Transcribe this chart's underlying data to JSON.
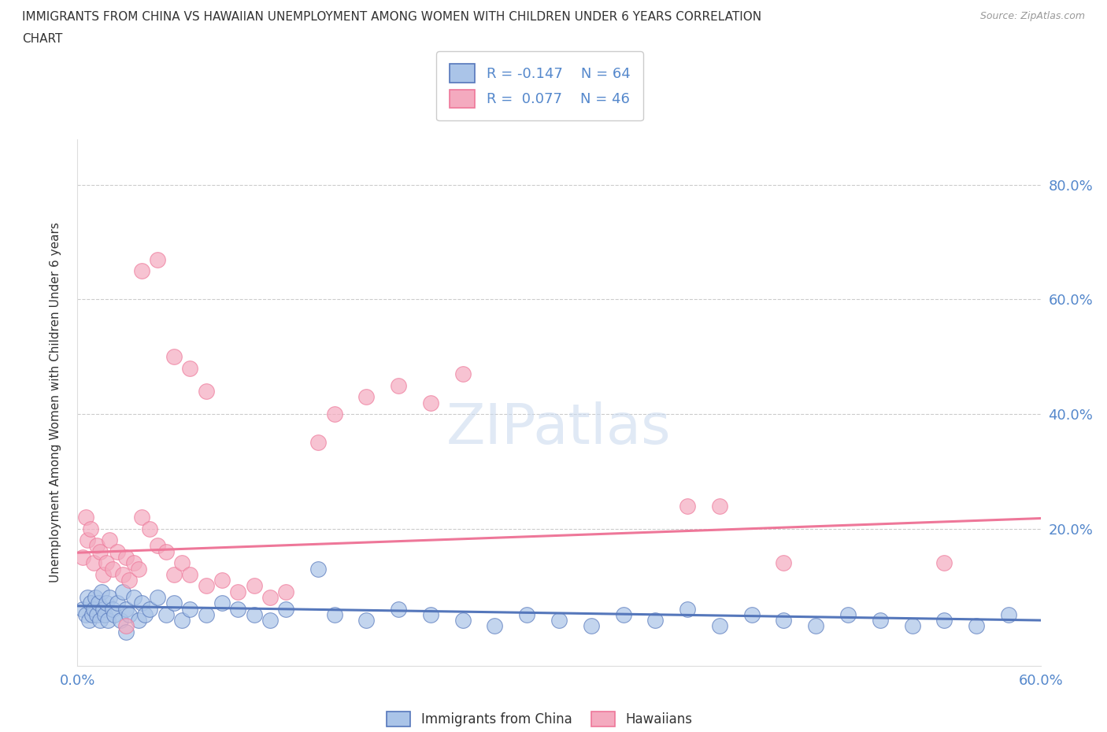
{
  "title": "IMMIGRANTS FROM CHINA VS HAWAIIAN UNEMPLOYMENT AMONG WOMEN WITH CHILDREN UNDER 6 YEARS CORRELATION\nCHART",
  "source": "Source: ZipAtlas.com",
  "ylabel": "Unemployment Among Women with Children Under 6 years",
  "color_china": "#aac4e8",
  "color_hawaii": "#f4aabf",
  "color_china_line": "#5577bb",
  "color_hawaii_line": "#ee7799",
  "color_grid": "#cccccc",
  "background_color": "#ffffff",
  "xlim": [
    0.0,
    0.6
  ],
  "ylim": [
    -0.04,
    0.88
  ],
  "yticks": [
    0.2,
    0.4,
    0.6,
    0.8
  ],
  "china_x": [
    0.003,
    0.005,
    0.006,
    0.007,
    0.008,
    0.009,
    0.01,
    0.011,
    0.012,
    0.013,
    0.014,
    0.015,
    0.016,
    0.017,
    0.018,
    0.019,
    0.02,
    0.022,
    0.023,
    0.025,
    0.027,
    0.028,
    0.03,
    0.032,
    0.035,
    0.038,
    0.04,
    0.042,
    0.045,
    0.05,
    0.055,
    0.06,
    0.065,
    0.07,
    0.08,
    0.09,
    0.1,
    0.11,
    0.12,
    0.13,
    0.15,
    0.16,
    0.18,
    0.2,
    0.22,
    0.24,
    0.26,
    0.28,
    0.3,
    0.32,
    0.34,
    0.36,
    0.38,
    0.4,
    0.42,
    0.44,
    0.46,
    0.48,
    0.5,
    0.52,
    0.54,
    0.56,
    0.58,
    0.03
  ],
  "china_y": [
    0.06,
    0.05,
    0.08,
    0.04,
    0.07,
    0.05,
    0.06,
    0.08,
    0.05,
    0.07,
    0.04,
    0.09,
    0.06,
    0.05,
    0.07,
    0.04,
    0.08,
    0.06,
    0.05,
    0.07,
    0.04,
    0.09,
    0.06,
    0.05,
    0.08,
    0.04,
    0.07,
    0.05,
    0.06,
    0.08,
    0.05,
    0.07,
    0.04,
    0.06,
    0.05,
    0.07,
    0.06,
    0.05,
    0.04,
    0.06,
    0.13,
    0.05,
    0.04,
    0.06,
    0.05,
    0.04,
    0.03,
    0.05,
    0.04,
    0.03,
    0.05,
    0.04,
    0.06,
    0.03,
    0.05,
    0.04,
    0.03,
    0.05,
    0.04,
    0.03,
    0.04,
    0.03,
    0.05,
    0.02
  ],
  "hawaii_x": [
    0.003,
    0.005,
    0.006,
    0.008,
    0.01,
    0.012,
    0.014,
    0.016,
    0.018,
    0.02,
    0.022,
    0.025,
    0.028,
    0.03,
    0.032,
    0.035,
    0.038,
    0.04,
    0.045,
    0.05,
    0.055,
    0.06,
    0.065,
    0.07,
    0.08,
    0.09,
    0.1,
    0.11,
    0.12,
    0.13,
    0.15,
    0.16,
    0.18,
    0.2,
    0.22,
    0.24,
    0.38,
    0.4,
    0.44,
    0.54,
    0.04,
    0.05,
    0.06,
    0.07,
    0.08,
    0.03
  ],
  "hawaii_y": [
    0.15,
    0.22,
    0.18,
    0.2,
    0.14,
    0.17,
    0.16,
    0.12,
    0.14,
    0.18,
    0.13,
    0.16,
    0.12,
    0.15,
    0.11,
    0.14,
    0.13,
    0.22,
    0.2,
    0.17,
    0.16,
    0.12,
    0.14,
    0.12,
    0.1,
    0.11,
    0.09,
    0.1,
    0.08,
    0.09,
    0.35,
    0.4,
    0.43,
    0.45,
    0.42,
    0.47,
    0.24,
    0.24,
    0.14,
    0.14,
    0.65,
    0.67,
    0.5,
    0.48,
    0.44,
    0.03
  ],
  "china_trend_x0": 0.0,
  "china_trend_y0": 0.065,
  "china_trend_x1": 0.6,
  "china_trend_y1": 0.04,
  "hawaii_trend_x0": 0.0,
  "hawaii_trend_y0": 0.158,
  "hawaii_trend_x1": 0.6,
  "hawaii_trend_y1": 0.218
}
